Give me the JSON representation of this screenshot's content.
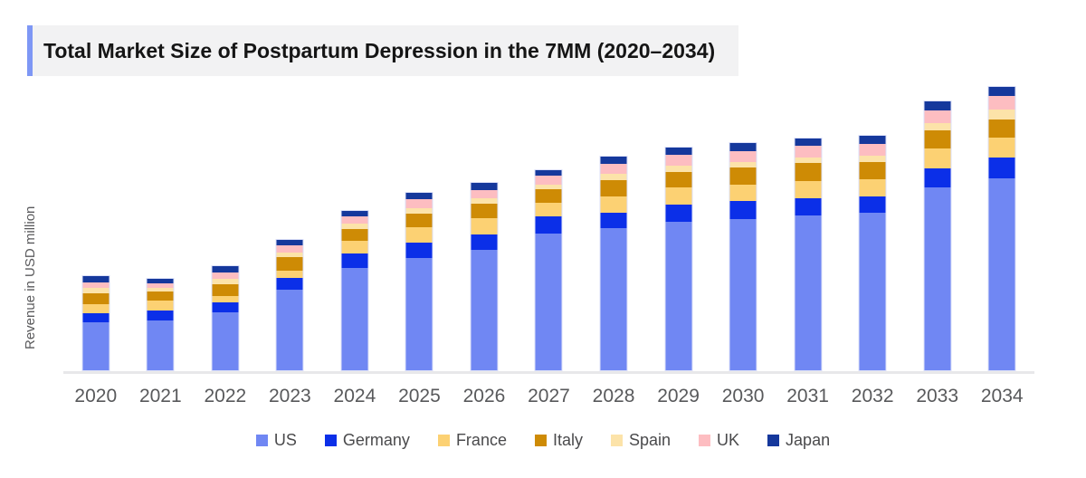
{
  "title": {
    "text": "Total Market Size of Postpartum Depression in the 7MM (2020–2034)",
    "accent_color": "#7E97F5",
    "background_color": "#F2F2F3"
  },
  "y_axis_label": "Revenue in USD million",
  "colors": {
    "baseline": "#E8E8EA",
    "bar_border": "#DCE0F8",
    "axis_text": "#58595B",
    "legend_text": "#4A4A4C",
    "title_text": "#151515"
  },
  "chart_data": {
    "type": "bar",
    "stacked": true,
    "title": "Total Market Size of Postpartum Depression in the 7MM (2020–2034)",
    "xlabel": "",
    "ylabel": "Revenue in USD million",
    "value_axis_note": "y-axis has no numeric tick labels; values are relative units estimated from bar pixel heights (1 unit ≈ 1 px)",
    "ylim": [
      0,
      322
    ],
    "grid": false,
    "legend_position": "bottom",
    "categories": [
      "2020",
      "2021",
      "2022",
      "2023",
      "2024",
      "2025",
      "2026",
      "2027",
      "2028",
      "2029",
      "2030",
      "2031",
      "2032",
      "2033",
      "2034"
    ],
    "series": [
      {
        "name": "US",
        "color": "#7087F3",
        "values": [
          53,
          55,
          64,
          89,
          113,
          124,
          133,
          151.5,
          157,
          164,
          167,
          171,
          174,
          202,
          212
        ]
      },
      {
        "name": "Germany",
        "color": "#0B2FE8",
        "values": [
          10,
          11,
          11.5,
          13,
          16,
          17.5,
          17.5,
          18.5,
          17.5,
          19.5,
          20,
          19.5,
          18,
          21.5,
          23.5
        ]
      },
      {
        "name": "France",
        "color": "#FCD173",
        "values": [
          10,
          11,
          7,
          8.5,
          14,
          16.5,
          18,
          15,
          17.5,
          18.5,
          18.5,
          19,
          19.5,
          21.5,
          21.5
        ]
      },
      {
        "name": "Italy",
        "color": "#CE8B05",
        "values": [
          12,
          10,
          12.5,
          14.5,
          13.5,
          15.5,
          15.5,
          15,
          18.5,
          17.5,
          18.5,
          19.5,
          19,
          20.5,
          20
        ]
      },
      {
        "name": "Spain",
        "color": "#FCE3A9",
        "values": [
          6,
          4,
          6,
          5.5,
          5.5,
          6,
          6.5,
          5.5,
          6.5,
          6.5,
          6.5,
          6.5,
          7,
          7.5,
          11.5
        ]
      },
      {
        "name": "UK",
        "color": "#FDBDC1",
        "values": [
          6,
          5,
          7.5,
          7.5,
          8.5,
          9.5,
          9,
          9.5,
          11.5,
          12,
          12,
          12.5,
          13,
          14,
          14.5
        ]
      },
      {
        "name": "Japan",
        "color": "#15389C",
        "values": [
          7,
          5.5,
          6.5,
          6.5,
          5.5,
          7.5,
          7.5,
          6.5,
          7.5,
          8.5,
          8.5,
          8.5,
          8.5,
          10,
          10
        ]
      }
    ]
  }
}
